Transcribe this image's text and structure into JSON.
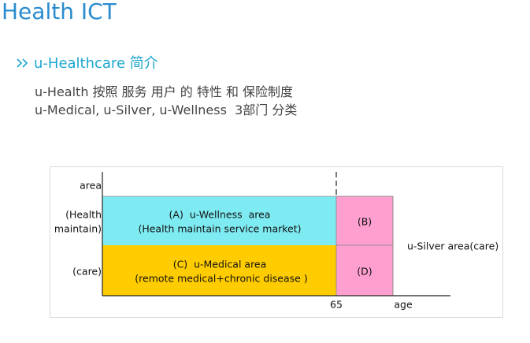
{
  "header": {
    "title": "Health ICT"
  },
  "section": {
    "heading": "u-Healthcare 简介",
    "lines": [
      "u-Health 按照 服务 用户 的 特性 和 保险制度",
      "u-Medical, u-Silver, u-Wellness  3部门 分类"
    ]
  },
  "diagram": {
    "y_labels": [
      "area",
      "(Health",
      "maintain)",
      "(care)"
    ],
    "regions": [
      {
        "label": "(A)  u-Wellness  area",
        "sublabel": "(Health maintain service market)"
      },
      {
        "label": "(C)  u-Medical area",
        "sublabel": "(remote medical+chronic disease )"
      },
      {
        "label": "(B)"
      },
      {
        "label": "(D)"
      }
    ],
    "side_label": "u-Silver area(care)",
    "x_labels": [
      "65",
      "age"
    ]
  }
}
